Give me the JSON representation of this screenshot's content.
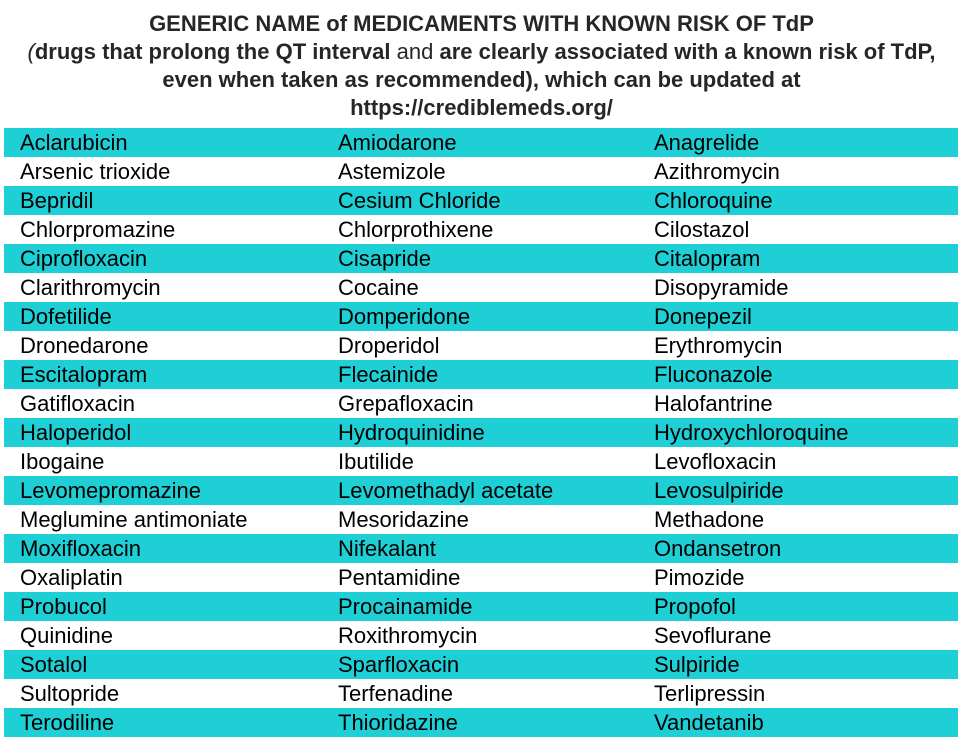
{
  "header": {
    "title": "GENERIC NAME of MEDICAMENTS WITH KNOWN RISK OF TdP",
    "open_paren": "(",
    "bold_part1": "drugs that prolong the QT interval",
    "normal_and": " and ",
    "bold_part2": "are clearly associated with a known risk of TdP, even when taken as recommended)",
    "normal_tail": ", which can be updated at",
    "url": "https://crediblemeds.org/"
  },
  "colors": {
    "stripe": "#1ecfd6",
    "header_text": "#262626"
  },
  "rows": [
    [
      "Aclarubicin",
      "Amiodarone",
      "Anagrelide"
    ],
    [
      "Arsenic trioxide",
      "Astemizole",
      "Azithromycin"
    ],
    [
      "Bepridil",
      "Cesium Chloride",
      "Chloroquine"
    ],
    [
      "Chlorpromazine",
      "Chlorprothixene",
      "Cilostazol"
    ],
    [
      "Ciprofloxacin",
      "Cisapride",
      "Citalopram"
    ],
    [
      "Clarithromycin",
      "Cocaine",
      "Disopyramide"
    ],
    [
      "Dofetilide",
      "Domperidone",
      "Donepezil"
    ],
    [
      "Dronedarone",
      "Droperidol",
      "Erythromycin"
    ],
    [
      "Escitalopram",
      "Flecainide",
      "Fluconazole"
    ],
    [
      "Gatifloxacin",
      "Grepafloxacin",
      "Halofantrine"
    ],
    [
      "Haloperidol",
      "Hydroquinidine",
      "Hydroxychloroquine"
    ],
    [
      "Ibogaine",
      "Ibutilide",
      "Levofloxacin"
    ],
    [
      "Levomepromazine",
      "Levomethadyl acetate",
      "Levosulpiride"
    ],
    [
      "Meglumine antimoniate",
      "Mesoridazine",
      "Methadone"
    ],
    [
      "Moxifloxacin",
      "Nifekalant",
      "Ondansetron"
    ],
    [
      "Oxaliplatin",
      "Pentamidine",
      "Pimozide"
    ],
    [
      "Probucol",
      "Procainamide",
      "Propofol"
    ],
    [
      "Quinidine",
      "Roxithromycin",
      "Sevoflurane"
    ],
    [
      "Sotalol",
      "Sparfloxacin",
      "Sulpiride"
    ],
    [
      "Sultopride",
      "Terfenadine",
      "Terlipressin"
    ],
    [
      "Terodiline",
      "Thioridazine",
      "Vandetanib"
    ]
  ]
}
